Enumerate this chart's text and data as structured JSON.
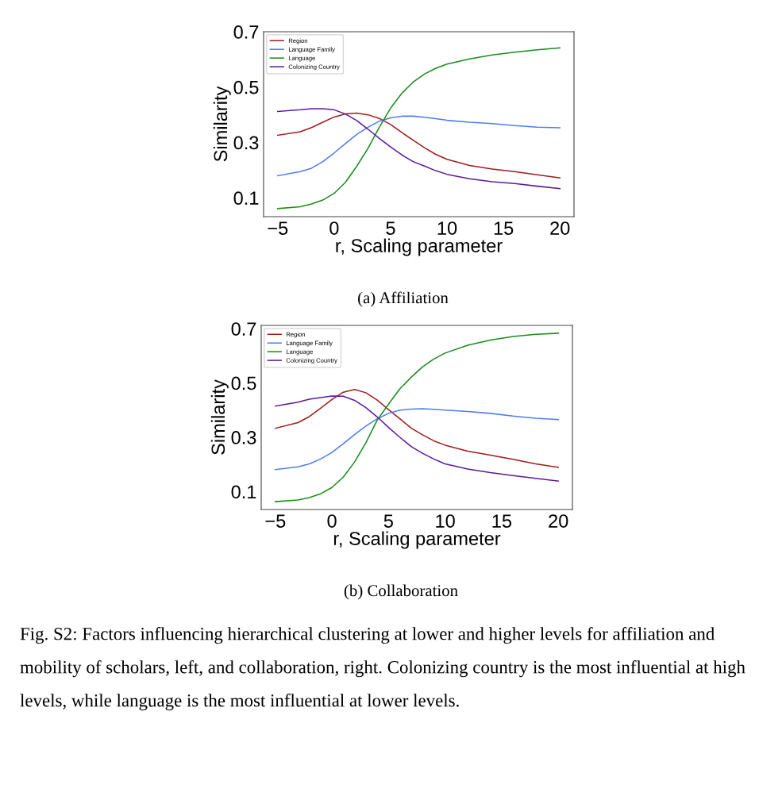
{
  "chart_data": [
    {
      "type": "line",
      "xlabel": "r, Scaling parameter",
      "ylabel": "Similarity",
      "xlim": [
        -6.25,
        21.25
      ],
      "ylim": [
        0.032,
        0.7
      ],
      "xticks": [
        -5,
        0,
        5,
        10,
        15,
        20
      ],
      "yticks": [
        0.1,
        0.3,
        0.5,
        0.7
      ],
      "grid": false,
      "legend": "top left",
      "marker": "none",
      "line_style": "solid",
      "x": [
        -5,
        -3,
        -2,
        -1,
        0,
        1,
        2,
        3,
        4,
        5,
        6,
        7,
        8,
        9,
        10,
        12,
        14,
        16,
        18,
        20
      ],
      "series": [
        {
          "name": "Region",
          "color": "#a31b1b",
          "values": [
            0.326,
            0.339,
            0.354,
            0.373,
            0.392,
            0.403,
            0.406,
            0.4,
            0.387,
            0.365,
            0.336,
            0.308,
            0.281,
            0.257,
            0.239,
            0.217,
            0.204,
            0.195,
            0.183,
            0.172
          ]
        },
        {
          "name": "Language Family",
          "color": "#4f7cf0",
          "values": [
            0.18,
            0.195,
            0.207,
            0.231,
            0.262,
            0.296,
            0.329,
            0.355,
            0.377,
            0.389,
            0.395,
            0.395,
            0.391,
            0.386,
            0.38,
            0.373,
            0.368,
            0.361,
            0.355,
            0.353
          ]
        },
        {
          "name": "Language",
          "color": "#1a8c1a",
          "values": [
            0.061,
            0.068,
            0.078,
            0.092,
            0.116,
            0.156,
            0.214,
            0.279,
            0.355,
            0.424,
            0.478,
            0.518,
            0.547,
            0.568,
            0.583,
            0.602,
            0.616,
            0.626,
            0.635,
            0.642
          ]
        },
        {
          "name": "Colonizing Country",
          "color": "#5b1a9e",
          "values": [
            0.412,
            0.418,
            0.422,
            0.422,
            0.418,
            0.403,
            0.379,
            0.348,
            0.315,
            0.284,
            0.255,
            0.231,
            0.215,
            0.198,
            0.185,
            0.169,
            0.158,
            0.152,
            0.142,
            0.133
          ]
        }
      ],
      "annotations": [
        "(a) Affiliation"
      ]
    },
    {
      "type": "line",
      "xlabel": "r, Scaling parameter",
      "ylabel": "Similarity",
      "xlim": [
        -6.25,
        21.25
      ],
      "ylim": [
        0.034,
        0.712
      ],
      "xticks": [
        -5,
        0,
        5,
        10,
        15,
        20
      ],
      "yticks": [
        0.1,
        0.3,
        0.5,
        0.7
      ],
      "grid": false,
      "legend": "top left",
      "marker": "none",
      "line_style": "solid",
      "x": [
        -5,
        -3,
        -2,
        -1,
        0,
        1,
        2,
        3,
        4,
        5,
        6,
        7,
        8,
        9,
        10,
        12,
        14,
        16,
        18,
        20
      ],
      "series": [
        {
          "name": "Region",
          "color": "#a31b1b",
          "values": [
            0.333,
            0.354,
            0.376,
            0.407,
            0.439,
            0.466,
            0.476,
            0.464,
            0.437,
            0.402,
            0.368,
            0.334,
            0.309,
            0.287,
            0.271,
            0.249,
            0.234,
            0.219,
            0.202,
            0.189
          ]
        },
        {
          "name": "Language Family",
          "color": "#4f7cf0",
          "values": [
            0.181,
            0.191,
            0.202,
            0.22,
            0.244,
            0.276,
            0.31,
            0.341,
            0.368,
            0.388,
            0.4,
            0.404,
            0.405,
            0.403,
            0.4,
            0.395,
            0.388,
            0.378,
            0.37,
            0.365
          ]
        },
        {
          "name": "Language",
          "color": "#1a8c1a",
          "values": [
            0.063,
            0.069,
            0.078,
            0.092,
            0.115,
            0.153,
            0.209,
            0.28,
            0.363,
            0.422,
            0.478,
            0.521,
            0.559,
            0.588,
            0.61,
            0.639,
            0.658,
            0.671,
            0.679,
            0.683
          ]
        },
        {
          "name": "Colonizing Country",
          "color": "#5b1a9e",
          "values": [
            0.415,
            0.429,
            0.44,
            0.446,
            0.452,
            0.451,
            0.436,
            0.409,
            0.375,
            0.336,
            0.3,
            0.266,
            0.241,
            0.22,
            0.202,
            0.183,
            0.17,
            0.159,
            0.149,
            0.139
          ]
        }
      ],
      "annotations": [
        "(b) Collaboration",
        "Fig. S2: Factors influencing hierarchical clustering at lower and higher levels for affiliation and mobility of scholars, left, and collaboration, right. Colonizing country is the most influential at high levels, while language is the most influential at lower levels."
      ]
    }
  ]
}
